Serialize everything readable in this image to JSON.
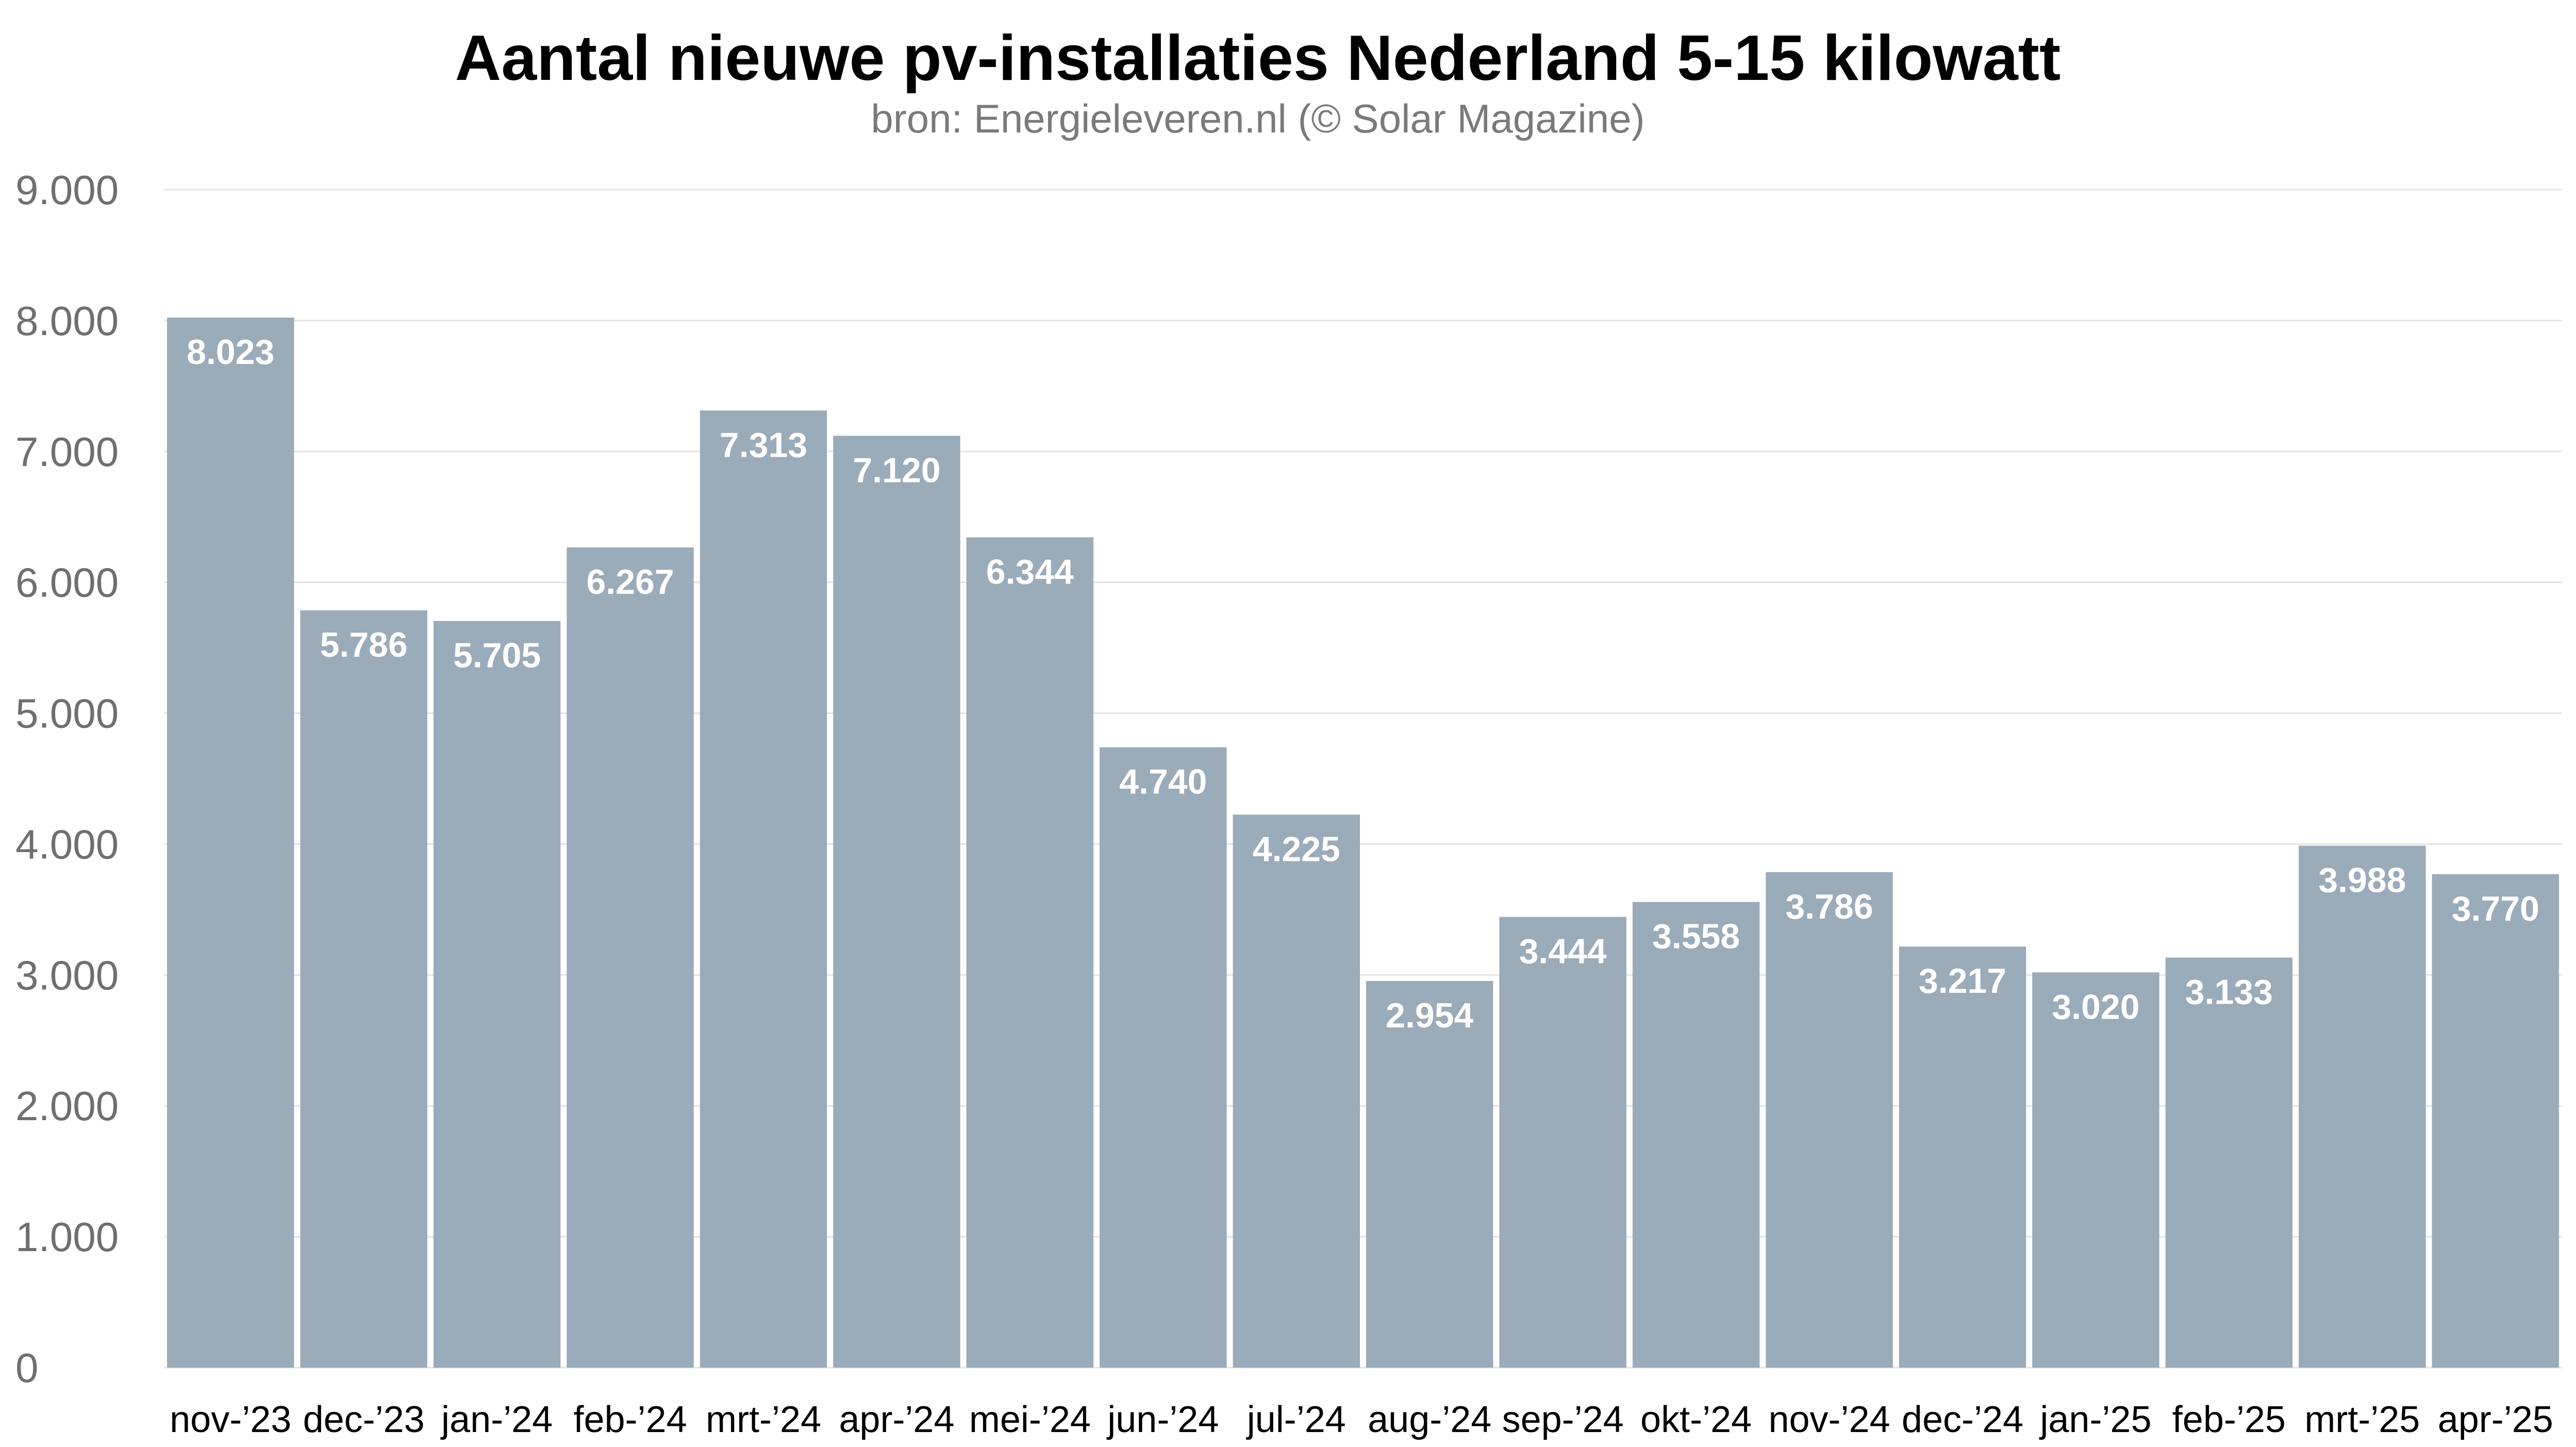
{
  "chart_data": {
    "type": "bar",
    "title": "Aantal nieuwe pv-installaties Nederland 5-15 kilowatt",
    "subtitle": "bron: Energieleveren.nl (© Solar Magazine)",
    "xlabel": "",
    "ylabel": "",
    "ylim": [
      0,
      9000
    ],
    "yticks": [
      0,
      1000,
      2000,
      3000,
      4000,
      5000,
      6000,
      7000,
      8000,
      9000
    ],
    "ytick_labels": [
      "0",
      "1.000",
      "2.000",
      "3.000",
      "4.000",
      "5.000",
      "6.000",
      "7.000",
      "8.000",
      "9.000"
    ],
    "categories": [
      "nov-’23",
      "dec-’23",
      "jan-’24",
      "feb-’24",
      "mrt-’24",
      "apr-’24",
      "mei-’24",
      "jun-’24",
      "jul-’24",
      "aug-’24",
      "sep-’24",
      "okt-’24",
      "nov-’24",
      "dec-’24",
      "jan-’25",
      "feb-’25",
      "mrt-’25",
      "apr-’25"
    ],
    "values": [
      8023,
      5786,
      5705,
      6267,
      7313,
      7120,
      6344,
      4740,
      4225,
      2954,
      3444,
      3558,
      3786,
      3217,
      3020,
      3133,
      3988,
      3770
    ],
    "value_labels": [
      "8.023",
      "5.786",
      "5.705",
      "6.267",
      "7.313",
      "7.120",
      "6.344",
      "4.740",
      "4.225",
      "2.954",
      "3.444",
      "3.558",
      "3.786",
      "3.217",
      "3.020",
      "3.133",
      "3.988",
      "3.770"
    ],
    "grid": true,
    "legend": "none",
    "bar_color": "#9aabba",
    "grid_color": "#e3e3e3"
  }
}
